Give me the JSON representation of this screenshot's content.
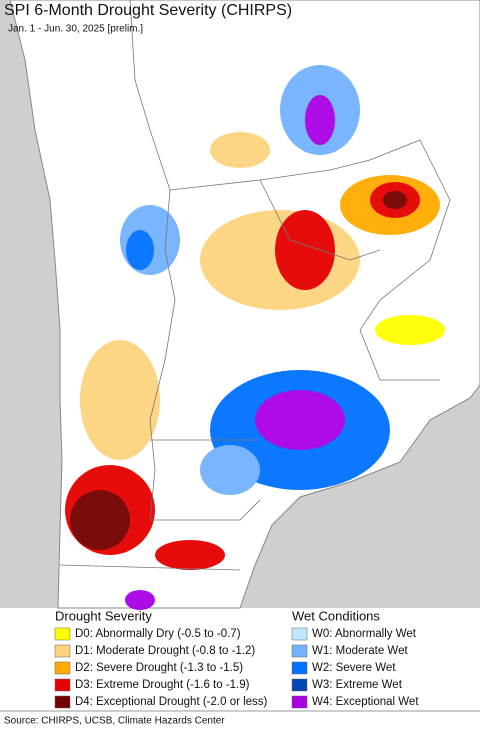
{
  "header": {
    "title": "SPI 6-Month Drought Severity (CHIRPS)",
    "subtitle": "Jan. 1 - Jun. 30, 2025 [prelim.]"
  },
  "legend": {
    "drought": {
      "title": "Drought Severity",
      "items": [
        {
          "label": "D0: Abnormally Dry (-0.5 to -0.7)",
          "color": "#ffff00"
        },
        {
          "label": "D1: Moderate Drought (-0.8 to -1.2)",
          "color": "#fcd37f"
        },
        {
          "label": "D2: Severe Drought (-1.3 to -1.5)",
          "color": "#ffaa00"
        },
        {
          "label": "D3: Extreme Drought (-1.6 to -1.9)",
          "color": "#e60000"
        },
        {
          "label": "D4: Exceptional Drought (-2.0 or less)",
          "color": "#730000"
        }
      ]
    },
    "wet": {
      "title": "Wet Conditions",
      "items": [
        {
          "label": "W0: Abnormally Wet",
          "color": "#bee8ff"
        },
        {
          "label": "W1: Moderate Wet",
          "color": "#73b2ff"
        },
        {
          "label": "W2: Severe Wet",
          "color": "#0070ff"
        },
        {
          "label": "W3: Extreme Wet",
          "color": "#0047b3"
        },
        {
          "label": "W4: Exceptional Wet",
          "color": "#a900e6"
        }
      ]
    }
  },
  "footer": {
    "source": "Source: CHIRPS, UCSB, Climate Hazards Center"
  }
}
